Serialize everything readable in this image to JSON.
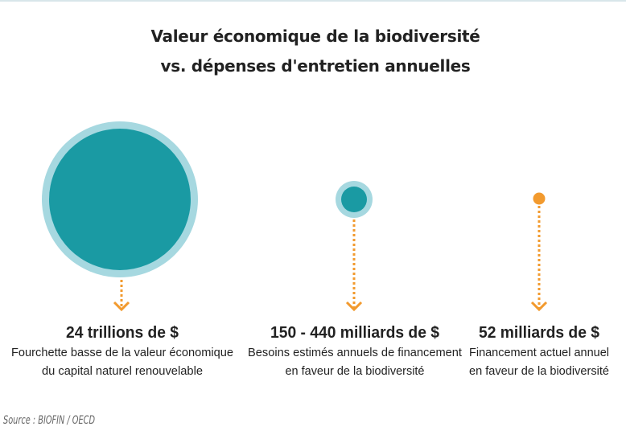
{
  "title": {
    "line1": "Valeur économique de la biodiversité",
    "line2": "vs. dépenses d'entretien annuelles"
  },
  "items": [
    {
      "value": "24 trillions de $",
      "desc1": "Fourchette basse de la valeur économique",
      "desc2": "du capital naturel renouvelable"
    },
    {
      "value": "150 - 440 milliards de $",
      "desc1": "Besoins estimés annuels de financement",
      "desc2": "en faveur de la biodiversité"
    },
    {
      "value": "52 milliards de $",
      "desc1": "Financement actuel annuel",
      "desc2": "en faveur de la biodiversité"
    }
  ],
  "source": "Source : BIOFIN / OECD",
  "colors": {
    "teal": "#1a9aa3",
    "light_teal": "#a6d8e0",
    "orange": "#f29a2e"
  }
}
